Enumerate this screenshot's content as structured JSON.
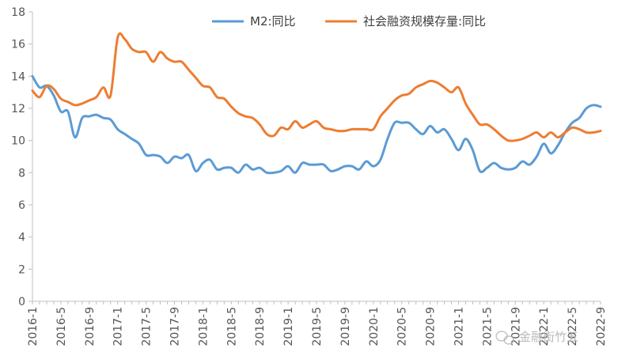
{
  "chart_data": {
    "type": "line",
    "title": "",
    "xlabel": "",
    "ylabel": "",
    "ylim": [
      0,
      18
    ],
    "yticks": [
      0,
      2,
      4,
      6,
      8,
      10,
      12,
      14,
      16,
      18
    ],
    "xtick_labels": [
      "2016-1",
      "2016-5",
      "2016-9",
      "2017-1",
      "2017-5",
      "2017-9",
      "2018-1",
      "2018-5",
      "2018-9",
      "2019-1",
      "2019-5",
      "2019-9",
      "2020-1",
      "2020-5",
      "2020-9",
      "2021-1",
      "2021-5",
      "2021-9",
      "2022-1",
      "2022-5",
      "2022-9"
    ],
    "x": [
      "2016-1",
      "2016-2",
      "2016-3",
      "2016-4",
      "2016-5",
      "2016-6",
      "2016-7",
      "2016-8",
      "2016-9",
      "2016-10",
      "2016-11",
      "2016-12",
      "2017-1",
      "2017-2",
      "2017-3",
      "2017-4",
      "2017-5",
      "2017-6",
      "2017-7",
      "2017-8",
      "2017-9",
      "2017-10",
      "2017-11",
      "2017-12",
      "2018-1",
      "2018-2",
      "2018-3",
      "2018-4",
      "2018-5",
      "2018-6",
      "2018-7",
      "2018-8",
      "2018-9",
      "2018-10",
      "2018-11",
      "2018-12",
      "2019-1",
      "2019-2",
      "2019-3",
      "2019-4",
      "2019-5",
      "2019-6",
      "2019-7",
      "2019-8",
      "2019-9",
      "2019-10",
      "2019-11",
      "2019-12",
      "2020-1",
      "2020-2",
      "2020-3",
      "2020-4",
      "2020-5",
      "2020-6",
      "2020-7",
      "2020-8",
      "2020-9",
      "2020-10",
      "2020-11",
      "2020-12",
      "2021-1",
      "2021-2",
      "2021-3",
      "2021-4",
      "2021-5",
      "2021-6",
      "2021-7",
      "2021-8",
      "2021-9",
      "2021-10",
      "2021-11",
      "2021-12",
      "2022-1",
      "2022-2",
      "2022-3",
      "2022-4",
      "2022-5",
      "2022-6",
      "2022-7",
      "2022-8",
      "2022-9"
    ],
    "series": [
      {
        "name": "M2:同比",
        "color": "#5B9BD5",
        "values": [
          14.0,
          13.3,
          13.4,
          12.8,
          11.8,
          11.8,
          10.2,
          11.4,
          11.5,
          11.6,
          11.4,
          11.3,
          10.7,
          10.4,
          10.1,
          9.8,
          9.1,
          9.1,
          9.0,
          8.6,
          9.0,
          8.9,
          9.1,
          8.1,
          8.6,
          8.8,
          8.2,
          8.3,
          8.3,
          8.0,
          8.5,
          8.2,
          8.3,
          8.0,
          8.0,
          8.1,
          8.4,
          8.0,
          8.6,
          8.5,
          8.5,
          8.5,
          8.1,
          8.2,
          8.4,
          8.4,
          8.2,
          8.7,
          8.4,
          8.8,
          10.1,
          11.1,
          11.1,
          11.1,
          10.7,
          10.4,
          10.9,
          10.5,
          10.7,
          10.1,
          9.4,
          10.1,
          9.4,
          8.1,
          8.3,
          8.6,
          8.3,
          8.2,
          8.3,
          8.7,
          8.5,
          9.0,
          9.8,
          9.2,
          9.7,
          10.5,
          11.1,
          11.4,
          12.0,
          12.2,
          12.1
        ]
      },
      {
        "name": "社会融资规模存量:同比",
        "color": "#ED7D31",
        "values": [
          13.1,
          12.7,
          13.4,
          13.2,
          12.6,
          12.4,
          12.2,
          12.3,
          12.5,
          12.7,
          13.3,
          12.8,
          16.4,
          16.3,
          15.7,
          15.5,
          15.5,
          14.9,
          15.5,
          15.1,
          14.9,
          14.9,
          14.4,
          13.9,
          13.4,
          13.3,
          12.7,
          12.6,
          12.1,
          11.7,
          11.5,
          11.4,
          11.0,
          10.4,
          10.3,
          10.8,
          10.7,
          11.2,
          10.8,
          11.0,
          11.2,
          10.8,
          10.7,
          10.6,
          10.6,
          10.7,
          10.7,
          10.7,
          10.7,
          11.5,
          12.0,
          12.5,
          12.8,
          12.9,
          13.3,
          13.5,
          13.7,
          13.6,
          13.3,
          13.0,
          13.3,
          12.3,
          11.6,
          11.0,
          11.0,
          10.7,
          10.3,
          10.0,
          10.0,
          10.1,
          10.3,
          10.5,
          10.2,
          10.5,
          10.2,
          10.5,
          10.8,
          10.7,
          10.5,
          10.5,
          10.6
        ]
      }
    ],
    "legend_position": "top-center",
    "grid": false
  },
  "watermark": {
    "text": "金融街竹五",
    "icon": "wechat-icon"
  }
}
